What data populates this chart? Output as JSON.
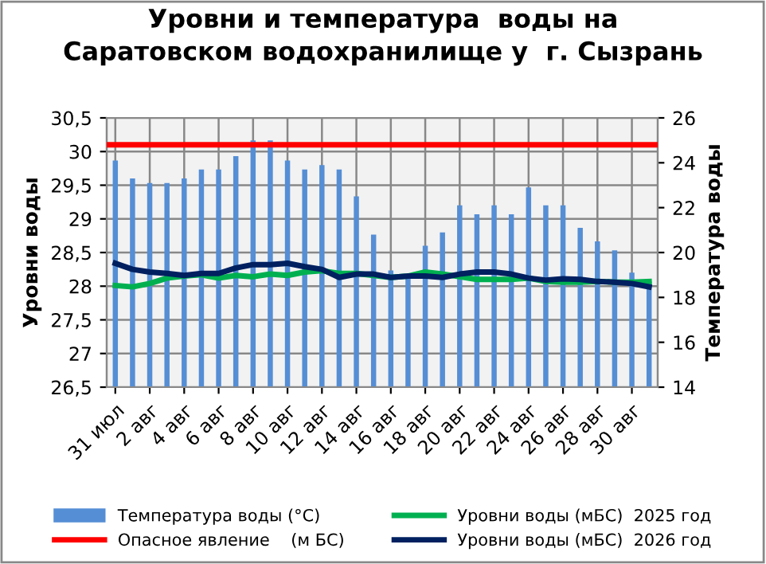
{
  "chart_data": {
    "type": "bar",
    "title": "Уровни и температура  воды на\nСаратовском водохранилище у  г. Сызрань",
    "ylabel": "Уровни воды",
    "y2label": "Температура воды",
    "categories": [
      "31 июл",
      null,
      "2 авг",
      null,
      "4 авг",
      null,
      "6 авг",
      null,
      "8 авг",
      null,
      "10 авг",
      null,
      "12 авг",
      null,
      "14 авг",
      null,
      "16 авг",
      null,
      "18 авг",
      null,
      "20 авг",
      null,
      "22 авг",
      null,
      "24 авг",
      null,
      "26 авг",
      null,
      "28 авг",
      null,
      "30 авг",
      null
    ],
    "series": [
      {
        "name": "Температура воды (°C)",
        "axis": "y2",
        "color": "#558ed5",
        "values": [
          24.1,
          23.3,
          23.1,
          23.1,
          23.3,
          23.7,
          23.7,
          24.3,
          25.0,
          25.0,
          24.1,
          23.7,
          23.9,
          23.7,
          22.5,
          20.8,
          19.2,
          18.9,
          20.3,
          20.9,
          22.1,
          21.7,
          22.1,
          21.7,
          22.9,
          22.1,
          22.1,
          21.1,
          20.5,
          20.1,
          19.1,
          18.7
        ]
      },
      {
        "name": "Уровни воды (мБС)  2025 год",
        "type": "line",
        "color": "#00b050",
        "values": [
          28.01,
          27.99,
          28.04,
          28.12,
          28.15,
          28.17,
          28.12,
          28.16,
          28.14,
          28.18,
          28.16,
          28.21,
          28.23,
          28.19,
          28.19,
          28.16,
          28.13,
          28.15,
          28.21,
          28.18,
          28.14,
          28.1,
          28.1,
          28.1,
          28.12,
          28.07,
          28.06,
          28.06,
          28.07,
          28.06,
          28.06,
          28.07
        ]
      },
      {
        "name": "Уровни воды (мБС)  2026 год",
        "type": "line",
        "color": "#002060",
        "values": [
          28.34,
          28.25,
          28.21,
          28.19,
          28.16,
          28.19,
          28.19,
          28.27,
          28.32,
          28.32,
          28.34,
          28.29,
          28.25,
          28.13,
          28.18,
          28.18,
          28.13,
          28.15,
          28.15,
          28.13,
          28.18,
          28.21,
          28.21,
          28.18,
          28.12,
          28.09,
          28.11,
          28.1,
          28.07,
          28.06,
          28.04,
          27.99
        ]
      }
    ],
    "ref_lines": [
      {
        "axis": "y",
        "value": 30.1,
        "label": "Опасное явление    (м БС)",
        "color": "#ff0000"
      }
    ],
    "ylim": [
      26.5,
      30.5
    ],
    "yticks": [
      {
        "value": 26.5,
        "label": "26,5"
      },
      27,
      {
        "value": 27.5,
        "label": "27,5"
      },
      28,
      {
        "value": 28.5,
        "label": "28,5"
      },
      29,
      {
        "value": 29.5,
        "label": "29,5"
      },
      30,
      {
        "value": 30.5,
        "label": "30,5"
      }
    ],
    "y2lim": [
      14,
      26
    ],
    "y2ticks": [
      14,
      16,
      18,
      20,
      22,
      24,
      26
    ],
    "grid": true,
    "legend": "bottom",
    "marker": "none",
    "line_style": "solid"
  }
}
